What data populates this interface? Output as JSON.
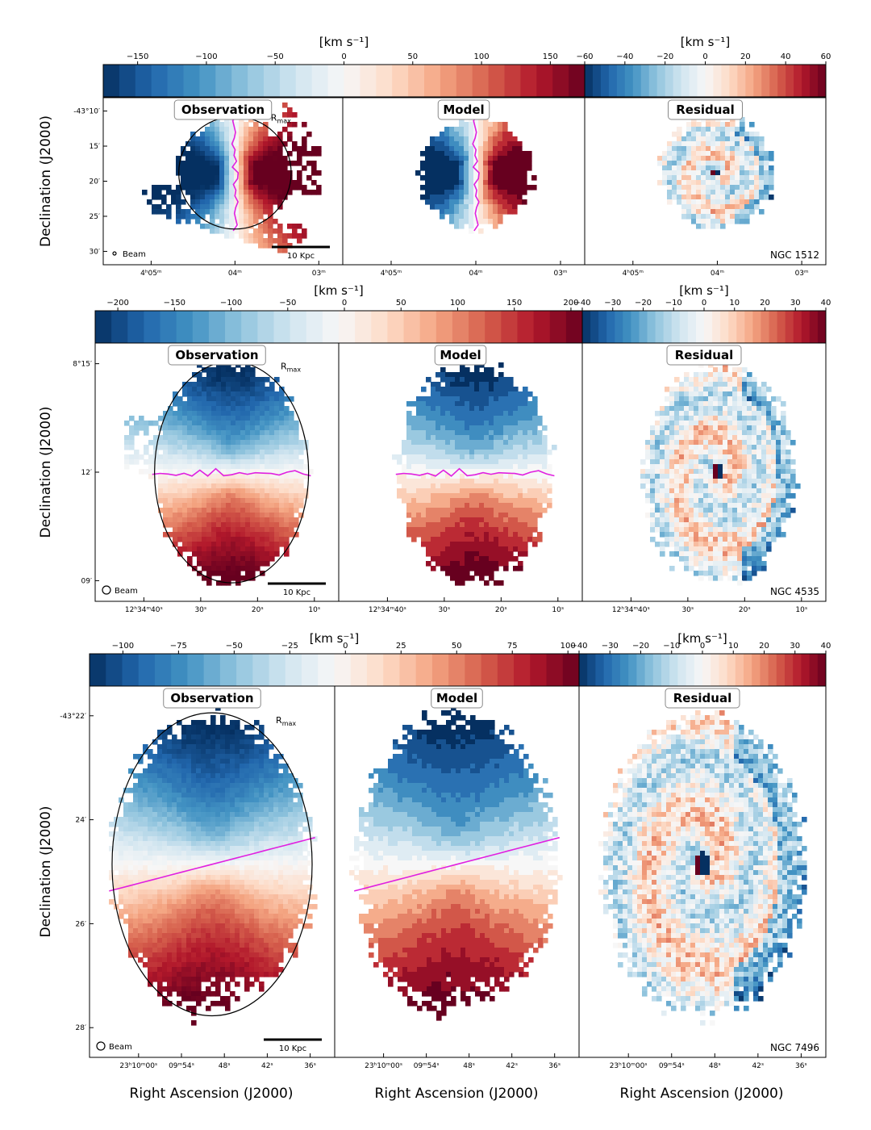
{
  "figure": {
    "x_axis_label": "Right Ascension (J2000)",
    "y_axis_label": "Declination (J2000)",
    "colorbar_unit": "[km s⁻¹]",
    "panel_titles": [
      "Observation",
      "Model",
      "Residual"
    ],
    "beam_label": "Beam",
    "rmax_label": "R",
    "rmax_sub": "max",
    "scalebar_label": "10 Kpc"
  },
  "colors": {
    "cmap_stops": [
      "#67001f",
      "#b2182b",
      "#d6604d",
      "#f4a582",
      "#fddbc7",
      "#f7f7f7",
      "#d1e5f0",
      "#92c5de",
      "#4393c3",
      "#2166ac",
      "#053061"
    ],
    "zero_velocity_line": "#e020e0",
    "ellipse": "#000000"
  },
  "chart_data": [
    {
      "type": "heatmap",
      "galaxy": "NGC 1512",
      "vel_cbar": {
        "min": -175,
        "max": 175,
        "ticks": [
          -150,
          -100,
          -50,
          0,
          50,
          100,
          150
        ]
      },
      "res_cbar": {
        "min": -60,
        "max": 60,
        "ticks": [
          -60,
          -40,
          -20,
          0,
          20,
          40,
          60
        ]
      },
      "dec_ticks": [
        "-43°10′",
        "15′",
        "20′",
        "25′",
        "30′"
      ],
      "ra_ticks": [
        "4ʰ05ᵐ",
        "04ᵐ",
        "03ᵐ"
      ],
      "ra_first_tick_obs": ""
    },
    {
      "type": "heatmap",
      "galaxy": "NGC 4535",
      "vel_cbar": {
        "min": -220,
        "max": 210,
        "ticks": [
          -200,
          -150,
          -100,
          -50,
          0,
          50,
          100,
          150,
          200
        ]
      },
      "res_cbar": {
        "min": -40,
        "max": 40,
        "ticks": [
          -40,
          -30,
          -20,
          -10,
          0,
          10,
          20,
          30,
          40
        ]
      },
      "dec_ticks": [
        "8°15′",
        "12′",
        "09′"
      ],
      "ra_ticks": [
        "12ʰ34ᵐ40ˢ",
        "30ˢ",
        "20ˢ",
        "10ˢ"
      ],
      "ra_first_tick_obs": ""
    },
    {
      "type": "heatmap",
      "galaxy": "NGC 7496",
      "vel_cbar": {
        "min": -115,
        "max": 105,
        "ticks": [
          -100,
          -75,
          -50,
          -25,
          0,
          25,
          50,
          75,
          100
        ]
      },
      "res_cbar": {
        "min": -40,
        "max": 40,
        "ticks": [
          -40,
          -30,
          -20,
          -10,
          0,
          10,
          20,
          30,
          40
        ]
      },
      "dec_ticks": [
        "-43°22′",
        "24′",
        "26′",
        "28′"
      ],
      "ra_ticks": [
        "23ʰ10ᵐ00ˢ",
        "09ᵐ54ˢ",
        "48ˢ",
        "42ˢ",
        "36ˢ"
      ],
      "ra_first_tick_obs": ""
    }
  ]
}
